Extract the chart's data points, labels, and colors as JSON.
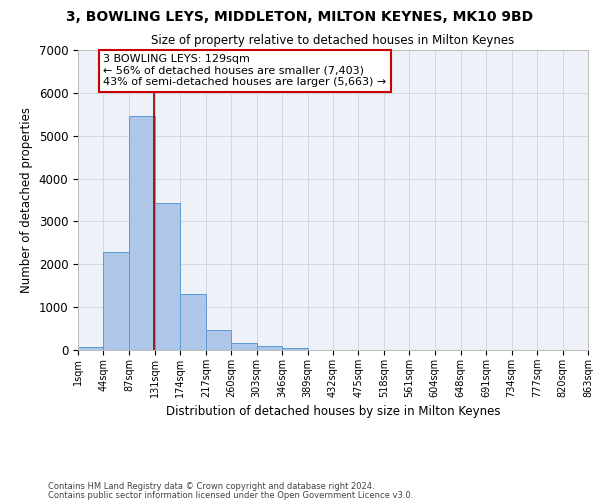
{
  "title": "3, BOWLING LEYS, MIDDLETON, MILTON KEYNES, MK10 9BD",
  "subtitle": "Size of property relative to detached houses in Milton Keynes",
  "xlabel": "Distribution of detached houses by size in Milton Keynes",
  "ylabel": "Number of detached properties",
  "bin_edges": [
    1,
    44,
    87,
    131,
    174,
    217,
    260,
    303,
    346,
    389,
    432,
    475,
    518,
    561,
    604,
    648,
    691,
    734,
    777,
    820,
    863
  ],
  "bin_labels": [
    "1sqm",
    "44sqm",
    "87sqm",
    "131sqm",
    "174sqm",
    "217sqm",
    "260sqm",
    "303sqm",
    "346sqm",
    "389sqm",
    "432sqm",
    "475sqm",
    "518sqm",
    "561sqm",
    "604sqm",
    "648sqm",
    "691sqm",
    "734sqm",
    "777sqm",
    "820sqm",
    "863sqm"
  ],
  "bar_heights": [
    80,
    2280,
    5470,
    3430,
    1310,
    460,
    155,
    85,
    45,
    0,
    0,
    0,
    0,
    0,
    0,
    0,
    0,
    0,
    0,
    0
  ],
  "bar_color": "#aec6e8",
  "bar_edge_color": "#5b9bd5",
  "grid_color": "#d0d8e8",
  "bg_color": "#eef2f8",
  "vline_x": 129,
  "vline_color": "#8b0000",
  "annotation_line1": "3 BOWLING LEYS: 129sqm",
  "annotation_line2": "← 56% of detached houses are smaller (7,403)",
  "annotation_line3": "43% of semi-detached houses are larger (5,663) →",
  "annotation_box_color": "#ffffff",
  "annotation_box_edge": "#cc0000",
  "ylim": [
    0,
    7000
  ],
  "yticks": [
    0,
    1000,
    2000,
    3000,
    4000,
    5000,
    6000,
    7000
  ],
  "footer_line1": "Contains HM Land Registry data © Crown copyright and database right 2024.",
  "footer_line2": "Contains public sector information licensed under the Open Government Licence v3.0."
}
